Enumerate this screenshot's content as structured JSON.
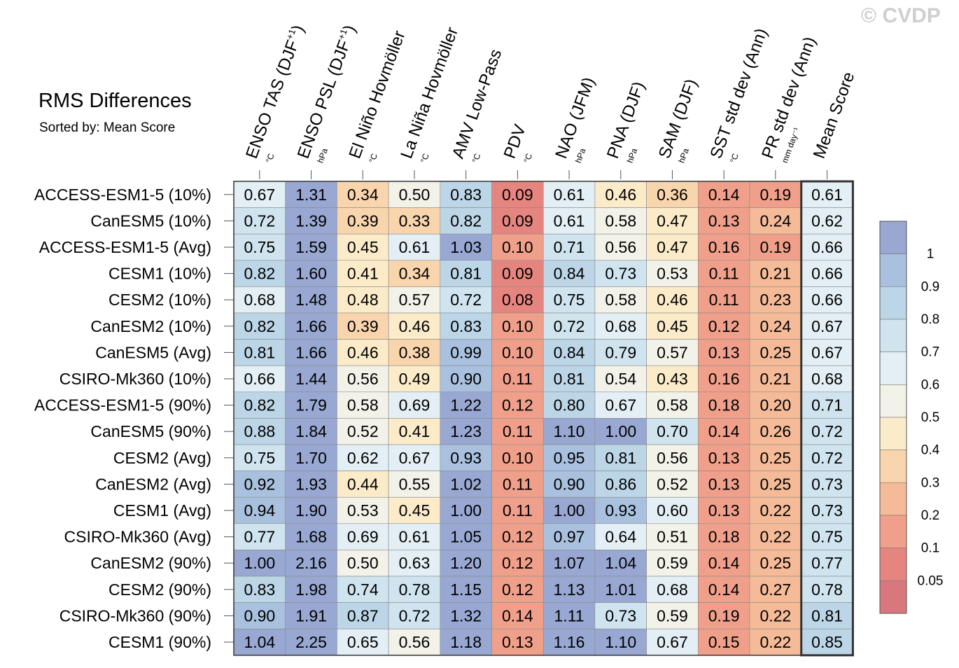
{
  "copyright": "© CVDP",
  "title": "RMS Differences",
  "subtitle": "Sorted by: Mean Score",
  "chart_data": {
    "type": "heatmap",
    "title": "RMS Differences",
    "subtitle": "Sorted by: Mean Score",
    "columns": [
      {
        "label": "ENSO TAS (DJF",
        "sup": "+1",
        "close": ")",
        "unit": "°C"
      },
      {
        "label": "ENSO PSL (DJF",
        "sup": "+1",
        "close": ")",
        "unit": "hPa"
      },
      {
        "label": "El Niño Hovmöller",
        "sup": "",
        "close": "",
        "unit": "°C"
      },
      {
        "label": "La Niña Hovmöller",
        "sup": "",
        "close": "",
        "unit": "°C"
      },
      {
        "label": "AMV Low-Pass",
        "sup": "",
        "close": "",
        "unit": "°C"
      },
      {
        "label": "PDV",
        "sup": "",
        "close": "",
        "unit": "°C"
      },
      {
        "label": "NAO (JFM)",
        "sup": "",
        "close": "",
        "unit": "hPa"
      },
      {
        "label": "PNA (DJF)",
        "sup": "",
        "close": "",
        "unit": "hPa"
      },
      {
        "label": "SAM (DJF)",
        "sup": "",
        "close": "",
        "unit": "hPa"
      },
      {
        "label": "SST std dev (Ann)",
        "sup": "",
        "close": "",
        "unit": "°C"
      },
      {
        "label": "PR std dev (Ann)",
        "sup": "",
        "close": "",
        "unit": "mm day⁻¹"
      },
      {
        "label": "Mean Score",
        "sup": "",
        "close": "",
        "unit": ""
      }
    ],
    "rows": [
      "ACCESS-ESM1-5 (10%)",
      "CanESM5 (10%)",
      "ACCESS-ESM1-5 (Avg)",
      "CESM1 (10%)",
      "CESM2 (10%)",
      "CanESM2 (10%)",
      "CanESM5 (Avg)",
      "CSIRO-Mk360 (10%)",
      "ACCESS-ESM1-5 (90%)",
      "CanESM5 (90%)",
      "CESM2 (Avg)",
      "CanESM2 (Avg)",
      "CESM1 (Avg)",
      "CSIRO-Mk360 (Avg)",
      "CanESM2 (90%)",
      "CESM2 (90%)",
      "CSIRO-Mk360 (90%)",
      "CESM1 (90%)"
    ],
    "values": [
      [
        0.67,
        1.31,
        0.34,
        0.5,
        0.83,
        0.09,
        0.61,
        0.46,
        0.36,
        0.14,
        0.19,
        0.61
      ],
      [
        0.72,
        1.39,
        0.39,
        0.33,
        0.82,
        0.09,
        0.61,
        0.58,
        0.47,
        0.13,
        0.24,
        0.62
      ],
      [
        0.75,
        1.59,
        0.45,
        0.61,
        1.03,
        0.1,
        0.71,
        0.56,
        0.47,
        0.16,
        0.19,
        0.66
      ],
      [
        0.82,
        1.6,
        0.41,
        0.34,
        0.81,
        0.09,
        0.84,
        0.73,
        0.53,
        0.11,
        0.21,
        0.66
      ],
      [
        0.68,
        1.48,
        0.48,
        0.57,
        0.72,
        0.08,
        0.75,
        0.58,
        0.46,
        0.11,
        0.23,
        0.66
      ],
      [
        0.82,
        1.66,
        0.39,
        0.46,
        0.83,
        0.1,
        0.72,
        0.68,
        0.45,
        0.12,
        0.24,
        0.67
      ],
      [
        0.81,
        1.66,
        0.46,
        0.38,
        0.99,
        0.1,
        0.84,
        0.79,
        0.57,
        0.13,
        0.25,
        0.67
      ],
      [
        0.66,
        1.44,
        0.56,
        0.49,
        0.9,
        0.11,
        0.81,
        0.54,
        0.43,
        0.16,
        0.21,
        0.68
      ],
      [
        0.82,
        1.79,
        0.58,
        0.69,
        1.22,
        0.12,
        0.8,
        0.67,
        0.58,
        0.18,
        0.2,
        0.71
      ],
      [
        0.88,
        1.84,
        0.52,
        0.41,
        1.23,
        0.11,
        1.1,
        1.0,
        0.7,
        0.14,
        0.26,
        0.72
      ],
      [
        0.75,
        1.7,
        0.62,
        0.67,
        0.93,
        0.1,
        0.95,
        0.81,
        0.56,
        0.13,
        0.25,
        0.72
      ],
      [
        0.92,
        1.93,
        0.44,
        0.55,
        1.02,
        0.11,
        0.9,
        0.86,
        0.52,
        0.13,
        0.25,
        0.73
      ],
      [
        0.94,
        1.9,
        0.53,
        0.45,
        1.0,
        0.11,
        1.0,
        0.93,
        0.6,
        0.13,
        0.22,
        0.73
      ],
      [
        0.77,
        1.68,
        0.69,
        0.61,
        1.05,
        0.12,
        0.97,
        0.64,
        0.51,
        0.18,
        0.22,
        0.75
      ],
      [
        1.0,
        2.16,
        0.5,
        0.63,
        1.2,
        0.12,
        1.07,
        1.04,
        0.59,
        0.14,
        0.25,
        0.77
      ],
      [
        0.83,
        1.98,
        0.74,
        0.78,
        1.15,
        0.12,
        1.13,
        1.01,
        0.68,
        0.14,
        0.27,
        0.78
      ],
      [
        0.9,
        1.91,
        0.87,
        0.72,
        1.32,
        0.14,
        1.11,
        0.73,
        0.59,
        0.19,
        0.22,
        0.81
      ],
      [
        1.04,
        2.25,
        0.65,
        0.56,
        1.18,
        0.13,
        1.16,
        1.1,
        0.67,
        0.15,
        0.22,
        0.85
      ]
    ],
    "colorbar": {
      "labels": [
        "1",
        "0.9",
        "0.8",
        "0.7",
        "0.6",
        "0.5",
        "0.4",
        "0.3",
        "0.2",
        "0.1",
        "0.05"
      ],
      "colors": [
        "#98a8d2",
        "#a9c1de",
        "#bcd6e8",
        "#cfe4ef",
        "#e3eff4",
        "#f2f2e8",
        "#fbebc9",
        "#f9d5ad",
        "#f5bb98",
        "#f0a08a",
        "#e6857f",
        "#d8787e"
      ]
    },
    "bins": {
      "thresholds": [
        0.05,
        0.1,
        0.2,
        0.3,
        0.4,
        0.5,
        0.6,
        0.7,
        0.8,
        0.9,
        1.0
      ],
      "colors_low_to_high": [
        "#d8787e",
        "#e6857f",
        "#f0a08a",
        "#f5bb98",
        "#f9d5ad",
        "#fbebc9",
        "#f2f2e8",
        "#e3eff4",
        "#cfe4ef",
        "#bcd6e8",
        "#a9c1de",
        "#98a8d2"
      ]
    }
  }
}
